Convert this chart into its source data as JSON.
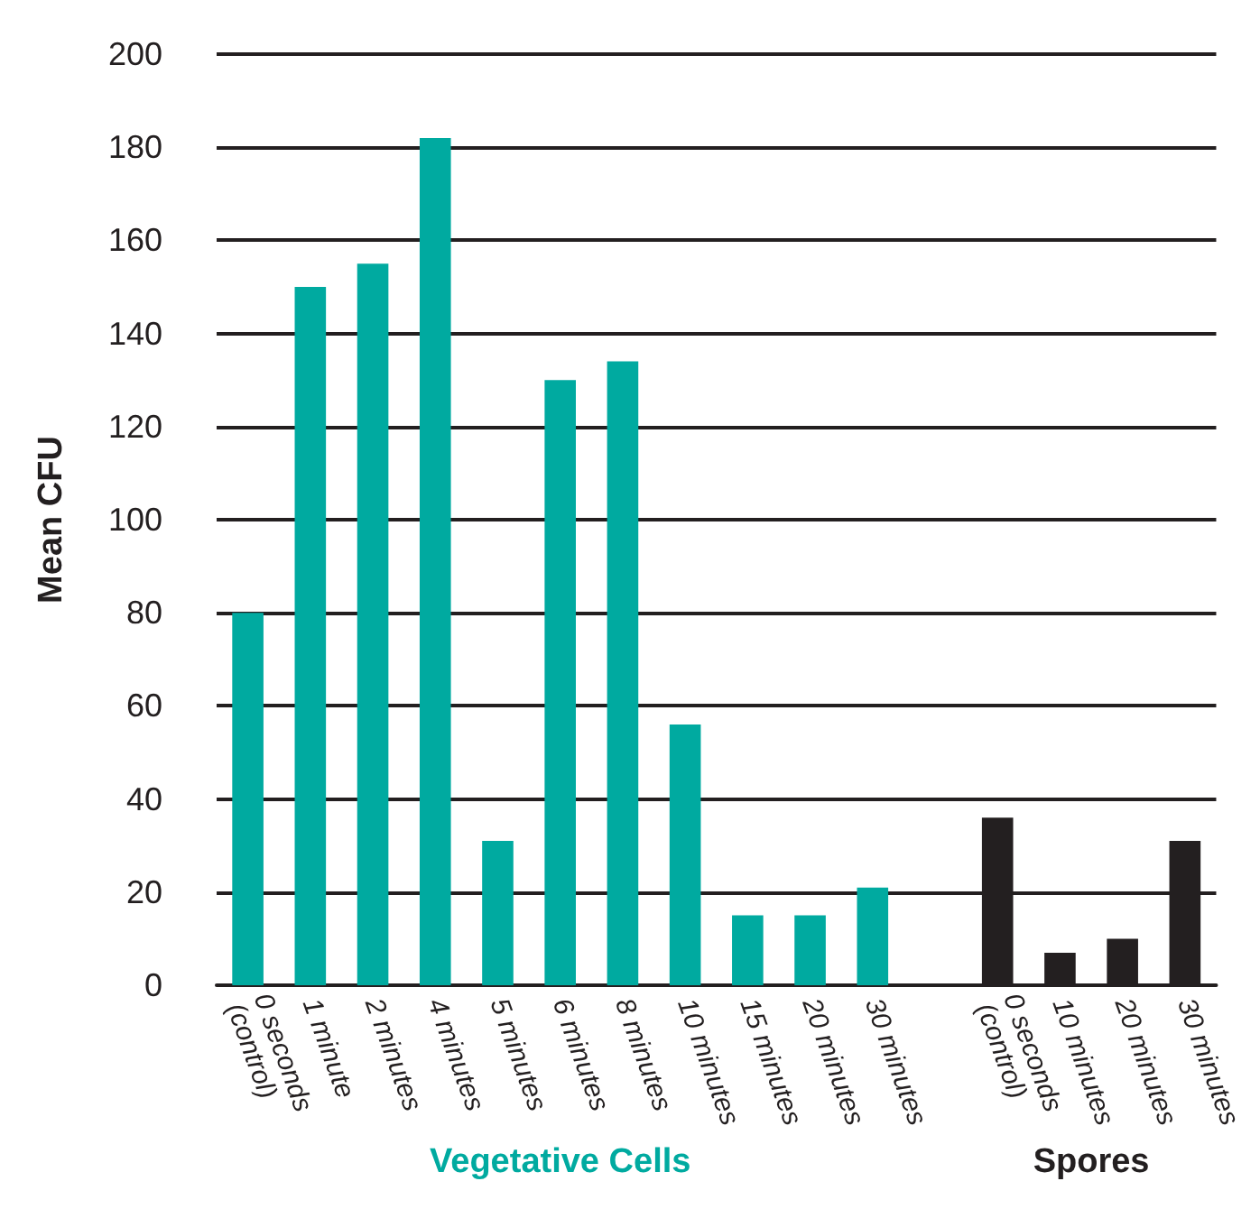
{
  "chart_data": {
    "type": "bar",
    "ylabel": "Mean CFU",
    "categories": [
      "0 seconds\n(control)",
      "1 minute",
      "2 minutes",
      "4 minutes",
      "5 minutes",
      "6 minutes",
      "8 minutes",
      "10 minutes",
      "15 minutes",
      "20 minutes",
      "30 minutes",
      null,
      "0 seconds\n(control)",
      "10 minutes",
      "20 minutes",
      "30 minutes"
    ],
    "series": [
      {
        "name": "Vegetative Cells",
        "color": "#00aaa0",
        "values": [
          80,
          150,
          155,
          182,
          31,
          130,
          134,
          56,
          15,
          15,
          21,
          null,
          null,
          null,
          null,
          null
        ]
      },
      {
        "name": "Spores",
        "color": "#231f20",
        "values": [
          null,
          null,
          null,
          null,
          null,
          null,
          null,
          null,
          null,
          null,
          null,
          null,
          36,
          7,
          10,
          31
        ]
      }
    ],
    "ylim": [
      0,
      200
    ],
    "yticks": [
      0,
      20,
      40,
      60,
      80,
      100,
      120,
      140,
      160,
      180,
      200
    ],
    "grid": "y",
    "legend": false
  }
}
